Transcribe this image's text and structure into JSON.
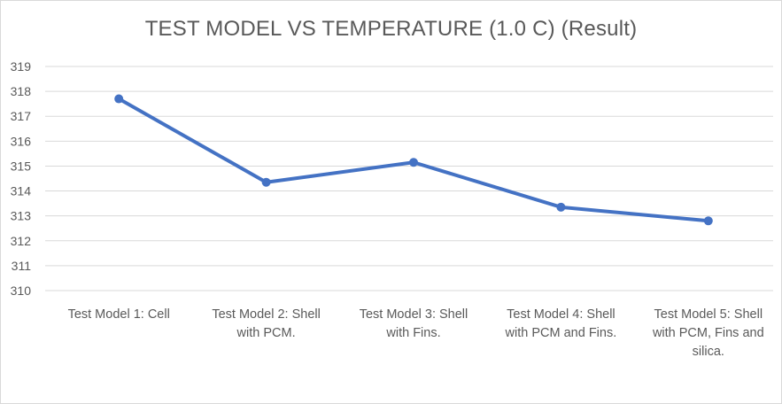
{
  "chart_data": {
    "type": "line",
    "title": "TEST MODEL VS TEMPERATURE (1.0 C) (Result)",
    "xlabel": "",
    "ylabel": "",
    "ylim": [
      310,
      319
    ],
    "y_ticks": [
      310,
      311,
      312,
      313,
      314,
      315,
      316,
      317,
      318,
      319
    ],
    "grid": true,
    "legend": "none",
    "categories": [
      [
        "Test Model 1: Cell"
      ],
      [
        "Test Model 2: Shell",
        "with PCM."
      ],
      [
        "Test Model 3: Shell",
        "with Fins."
      ],
      [
        "Test Model 4: Shell",
        "with PCM and Fins."
      ],
      [
        "Test Model 5: Shell",
        "with PCM, Fins and",
        "silica."
      ]
    ],
    "series": [
      {
        "values": [
          317.7,
          314.35,
          315.15,
          313.35,
          312.8
        ]
      }
    ],
    "colors": {
      "line": "#4472c4",
      "grid": "#d9d9d9",
      "text": "#595959"
    }
  }
}
